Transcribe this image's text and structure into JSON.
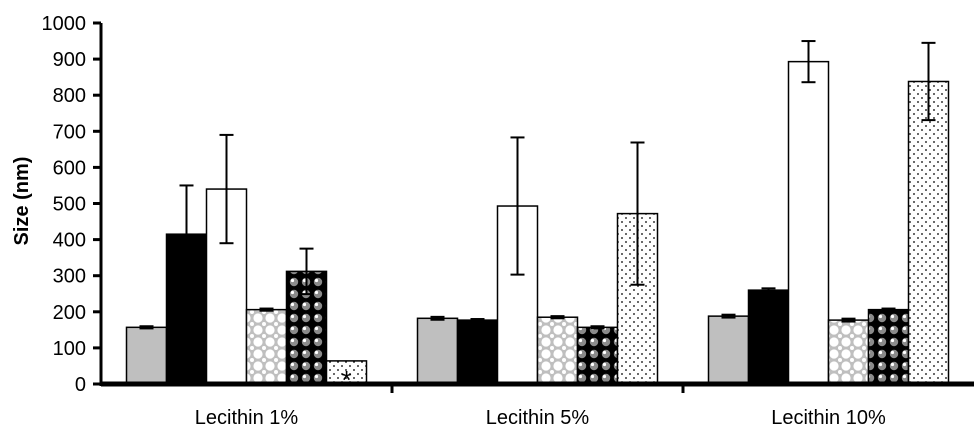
{
  "chart_data": {
    "type": "bar",
    "title": "",
    "xlabel": "",
    "ylabel": "Size (nm)",
    "ylim": [
      0,
      1000
    ],
    "yticks": [
      0,
      100,
      200,
      300,
      400,
      500,
      600,
      700,
      800,
      900,
      1000
    ],
    "ytick_labels": [
      "0",
      "100",
      "200",
      "300",
      "400",
      "500",
      "600",
      "700",
      "800",
      "900",
      "1000"
    ],
    "grid": false,
    "legend": "none",
    "categories": [
      "Lecithin 1%",
      "Lecithin 5%",
      "Lecithin 10%"
    ],
    "series": [
      {
        "pattern": "solid-gray",
        "values": [
          157,
          182,
          188
        ],
        "errors": [
          3,
          4,
          4
        ]
      },
      {
        "pattern": "solid-black",
        "values": [
          415,
          177,
          260
        ],
        "errors": [
          135,
          3,
          5
        ]
      },
      {
        "pattern": "white",
        "values": [
          540,
          493,
          893
        ],
        "errors": [
          150,
          190,
          57
        ]
      },
      {
        "pattern": "gray-dots",
        "values": [
          206,
          185,
          177
        ],
        "errors": [
          3,
          3,
          4
        ]
      },
      {
        "pattern": "black-dots",
        "values": [
          312,
          157,
          206
        ],
        "errors": [
          63,
          3,
          3
        ]
      },
      {
        "pattern": "fine-dots",
        "values": [
          64,
          472,
          838
        ],
        "errors": [
          0,
          197,
          107
        ]
      }
    ],
    "annotations": [
      {
        "text": "*",
        "category": "Lecithin 1%",
        "series_index": 5
      }
    ],
    "colors": {
      "gray": "#bfbfbf",
      "black": "#000000",
      "white": "#ffffff"
    }
  }
}
